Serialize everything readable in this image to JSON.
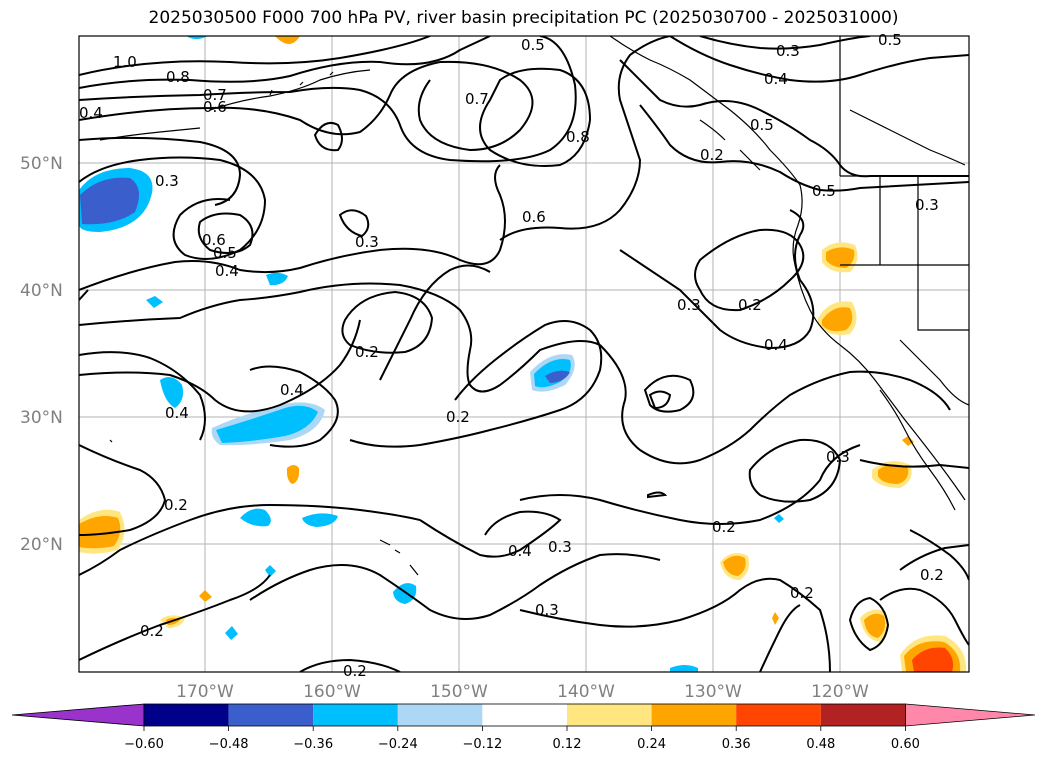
{
  "title": "2025030500 F000 700 hPa PV, river basin precipitation PC (2025030700 - 2025031000)",
  "map": {
    "lat_labels": [
      "50°N",
      "40°N",
      "30°N",
      "20°N"
    ],
    "lon_labels": [
      "170°W",
      "160°W",
      "150°W",
      "140°W",
      "130°W",
      "120°W"
    ]
  },
  "contour_labels": [
    "1.0",
    "0.8",
    "0.7",
    "0.6",
    "0.4",
    "0.5",
    "0.3",
    "0.4",
    "0.5",
    "0.7",
    "0.8",
    "0.6",
    "0.3",
    "0.6",
    "0.5",
    "0.4",
    "0.3",
    "0.2",
    "0.4",
    "0.4",
    "0.2",
    "0.2",
    "0.2",
    "0.4",
    "0.3",
    "0.3",
    "0.2",
    "0.2",
    "0.3",
    "0.2",
    "0.2",
    "0.2",
    "0.3",
    "0.4",
    "0.5",
    "0.5",
    "0.3",
    "0.2"
  ],
  "colorbar": {
    "ticks": [
      "−0.60",
      "−0.48",
      "−0.36",
      "−0.24",
      "−0.12",
      "0.12",
      "0.24",
      "0.36",
      "0.48",
      "0.60"
    ],
    "colors": [
      "#9933cc",
      "#00008b",
      "#3a5fcd",
      "#00bfff",
      "#add8f5",
      "#ffffff",
      "#ffe680",
      "#ffa500",
      "#ff4500",
      "#b22222",
      "#ff88aa"
    ]
  }
}
